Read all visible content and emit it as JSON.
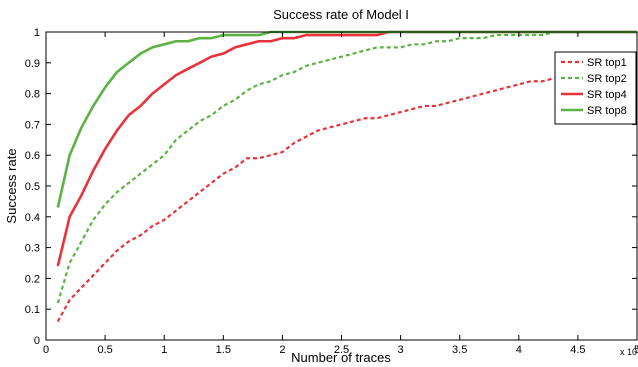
{
  "chart_data": {
    "type": "line",
    "title": "Success rate of Model I",
    "xlabel": "Number of traces",
    "ylabel": "Success rate",
    "xlim": [
      0,
      5
    ],
    "ylim": [
      0,
      1
    ],
    "x_multiplier_label": "x 10",
    "x_multiplier_exponent": "5",
    "xticks": [
      0,
      0.5,
      1,
      1.5,
      2,
      2.5,
      3,
      3.5,
      4,
      4.5,
      5
    ],
    "xtick_labels": [
      "0",
      "0.5",
      "1",
      "1.5",
      "2",
      "2.5",
      "3",
      "3.5",
      "4",
      "4.5",
      "5"
    ],
    "yticks": [
      0,
      0.1,
      0.2,
      0.3,
      0.4,
      0.5,
      0.6,
      0.7,
      0.8,
      0.9,
      1
    ],
    "ytick_labels": [
      "0",
      "0.1",
      "0.2",
      "0.3",
      "0.4",
      "0.5",
      "0.6",
      "0.7",
      "0.8",
      "0.9",
      "1"
    ],
    "grid": false,
    "legend_position": "top-right",
    "series": [
      {
        "name": "SR top1",
        "color": "#e8333a",
        "style": "dashed",
        "x": [
          0.1,
          0.2,
          0.3,
          0.4,
          0.5,
          0.6,
          0.7,
          0.8,
          0.9,
          1.0,
          1.1,
          1.2,
          1.3,
          1.4,
          1.5,
          1.6,
          1.7,
          1.8,
          1.9,
          2.0,
          2.1,
          2.2,
          2.3,
          2.4,
          2.5,
          2.6,
          2.7,
          2.8,
          2.9,
          3.0,
          3.1,
          3.2,
          3.3,
          3.4,
          3.5,
          3.6,
          3.7,
          3.8,
          3.9,
          4.0,
          4.1,
          4.2,
          4.3,
          4.4,
          4.5,
          4.6,
          4.7,
          4.8,
          4.9,
          5.0
        ],
        "y": [
          0.06,
          0.13,
          0.17,
          0.21,
          0.25,
          0.29,
          0.32,
          0.34,
          0.37,
          0.39,
          0.42,
          0.45,
          0.48,
          0.51,
          0.54,
          0.56,
          0.59,
          0.59,
          0.6,
          0.61,
          0.64,
          0.66,
          0.68,
          0.69,
          0.7,
          0.71,
          0.72,
          0.72,
          0.73,
          0.74,
          0.75,
          0.76,
          0.76,
          0.77,
          0.78,
          0.79,
          0.8,
          0.81,
          0.82,
          0.83,
          0.84,
          0.84,
          0.85,
          0.86,
          0.87,
          0.88,
          0.88,
          0.89,
          0.89,
          0.9
        ]
      },
      {
        "name": "SR top2",
        "color": "#5bb346",
        "style": "dashed",
        "x": [
          0.1,
          0.2,
          0.3,
          0.4,
          0.5,
          0.6,
          0.7,
          0.8,
          0.9,
          1.0,
          1.1,
          1.2,
          1.3,
          1.4,
          1.5,
          1.6,
          1.7,
          1.8,
          1.9,
          2.0,
          2.1,
          2.2,
          2.3,
          2.4,
          2.5,
          2.6,
          2.7,
          2.8,
          2.9,
          3.0,
          3.1,
          3.2,
          3.3,
          3.4,
          3.5,
          3.6,
          3.7,
          3.8,
          3.9,
          4.0,
          4.1,
          4.2,
          4.3,
          4.4,
          4.5,
          4.6,
          4.7,
          4.8,
          4.9,
          5.0
        ],
        "y": [
          0.12,
          0.25,
          0.32,
          0.39,
          0.44,
          0.48,
          0.51,
          0.54,
          0.57,
          0.6,
          0.65,
          0.68,
          0.71,
          0.73,
          0.76,
          0.78,
          0.81,
          0.83,
          0.84,
          0.86,
          0.87,
          0.89,
          0.9,
          0.91,
          0.92,
          0.93,
          0.94,
          0.95,
          0.95,
          0.95,
          0.96,
          0.96,
          0.97,
          0.97,
          0.98,
          0.98,
          0.98,
          0.99,
          0.99,
          0.99,
          0.99,
          0.99,
          1.0,
          1.0,
          1.0,
          1.0,
          1.0,
          1.0,
          1.0,
          1.0
        ]
      },
      {
        "name": "SR top4",
        "color": "#e8333a",
        "style": "solid",
        "x": [
          0.1,
          0.2,
          0.3,
          0.4,
          0.5,
          0.6,
          0.7,
          0.8,
          0.9,
          1.0,
          1.1,
          1.2,
          1.3,
          1.4,
          1.5,
          1.6,
          1.7,
          1.8,
          1.9,
          2.0,
          2.1,
          2.2,
          2.3,
          2.4,
          2.5,
          2.6,
          2.7,
          2.8,
          2.9,
          3.0,
          3.1,
          3.2,
          3.3,
          3.4,
          3.5,
          3.6,
          3.7,
          3.8,
          3.9,
          4.0,
          4.1,
          4.2,
          4.3,
          4.4,
          4.5,
          4.6,
          4.7,
          4.8,
          4.9,
          5.0
        ],
        "y": [
          0.24,
          0.4,
          0.47,
          0.55,
          0.62,
          0.68,
          0.73,
          0.76,
          0.8,
          0.83,
          0.86,
          0.88,
          0.9,
          0.92,
          0.93,
          0.95,
          0.96,
          0.97,
          0.97,
          0.98,
          0.98,
          0.99,
          0.99,
          0.99,
          0.99,
          0.99,
          0.99,
          0.99,
          1.0,
          1.0,
          1.0,
          1.0,
          1.0,
          1.0,
          1.0,
          1.0,
          1.0,
          1.0,
          1.0,
          1.0,
          1.0,
          1.0,
          1.0,
          1.0,
          1.0,
          1.0,
          1.0,
          1.0,
          1.0,
          1.0
        ]
      },
      {
        "name": "SR top8",
        "color": "#5bb346",
        "style": "solid",
        "x": [
          0.1,
          0.2,
          0.3,
          0.4,
          0.5,
          0.6,
          0.7,
          0.8,
          0.9,
          1.0,
          1.1,
          1.2,
          1.3,
          1.4,
          1.5,
          1.6,
          1.7,
          1.8,
          1.9,
          2.0,
          2.1,
          2.2,
          2.3,
          2.4,
          2.5,
          2.6,
          2.7,
          2.8,
          2.9,
          3.0,
          3.1,
          3.2,
          3.3,
          3.4,
          3.5,
          3.6,
          3.7,
          3.8,
          3.9,
          4.0,
          4.1,
          4.2,
          4.3,
          4.4,
          4.5,
          4.6,
          4.7,
          4.8,
          4.9,
          5.0
        ],
        "y": [
          0.43,
          0.6,
          0.69,
          0.76,
          0.82,
          0.87,
          0.9,
          0.93,
          0.95,
          0.96,
          0.97,
          0.97,
          0.98,
          0.98,
          0.99,
          0.99,
          0.99,
          0.99,
          1.0,
          1.0,
          1.0,
          1.0,
          1.0,
          1.0,
          1.0,
          1.0,
          1.0,
          1.0,
          1.0,
          1.0,
          1.0,
          1.0,
          1.0,
          1.0,
          1.0,
          1.0,
          1.0,
          1.0,
          1.0,
          1.0,
          1.0,
          1.0,
          1.0,
          1.0,
          1.0,
          1.0,
          1.0,
          1.0,
          1.0,
          1.0
        ]
      }
    ]
  }
}
